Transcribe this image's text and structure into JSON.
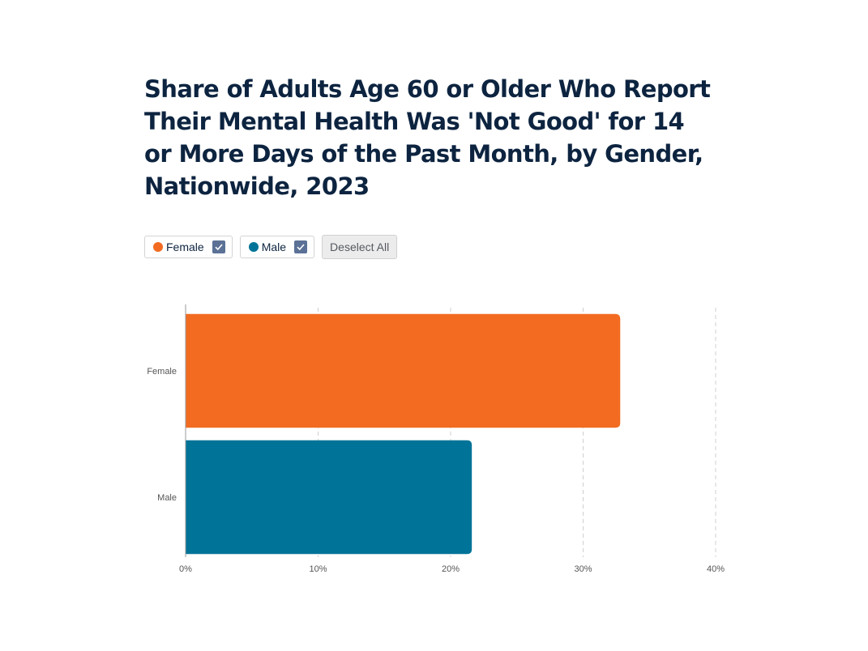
{
  "chart_data": {
    "type": "bar",
    "orientation": "horizontal",
    "title": "Share of Adults Age 60 or Older Who Report Their Mental Health Was 'Not Good' for 14 or More Days of the Past Month, by Gender, Nationwide, 2023",
    "categories": [
      "Female",
      "Male"
    ],
    "values": [
      32.8,
      21.6
    ],
    "colors": [
      "#f26b21",
      "#007398"
    ],
    "xlim": [
      0,
      40
    ],
    "x_ticks": [
      "0%",
      "10%",
      "20%",
      "30%",
      "40%"
    ],
    "x_tick_values": [
      0,
      10,
      20,
      30,
      40
    ],
    "grid": "vertical dashed",
    "legend_placement": "top-left"
  },
  "legend": {
    "items": [
      {
        "label": "Female",
        "color": "#f26b21",
        "checked": true
      },
      {
        "label": "Male",
        "color": "#007398",
        "checked": true
      }
    ],
    "deselect_label": "Deselect All"
  }
}
